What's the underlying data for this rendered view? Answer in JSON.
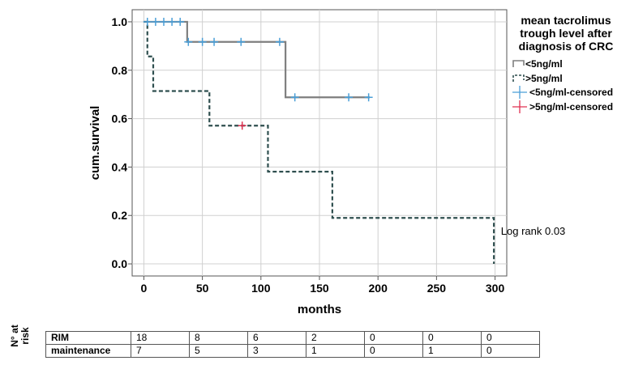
{
  "chart_data": {
    "type": "line",
    "subtype": "kaplan-meier",
    "xlabel": "months",
    "ylabel": "cum.survival",
    "xlim": [
      -10,
      310
    ],
    "ylim": [
      -0.05,
      1.05
    ],
    "xticks": [
      0,
      50,
      100,
      150,
      200,
      250,
      300
    ],
    "yticks": [
      0.0,
      0.2,
      0.4,
      0.6,
      0.8,
      1.0
    ],
    "ytick_labels": [
      "0.0",
      "0.2",
      "0.4",
      "0.6",
      "0.8",
      "1.0"
    ],
    "grid": true,
    "legend_title": "mean tacrolimus trough level after diagnosis of CRC",
    "legend_position": "right",
    "series": [
      {
        "name": "<5ng/ml",
        "color": "#7f7f7f",
        "style": "solid",
        "steps": [
          [
            0,
            1.0
          ],
          [
            37,
            0.917
          ],
          [
            121,
            0.688
          ],
          [
            193,
            0.688
          ]
        ]
      },
      {
        "name": ">5ng/ml",
        "color": "#2f4f4f",
        "style": "dashed",
        "steps": [
          [
            0,
            1.0
          ],
          [
            3,
            0.857
          ],
          [
            8,
            0.714
          ],
          [
            56,
            0.571
          ],
          [
            106,
            0.381
          ],
          [
            161,
            0.19
          ],
          [
            299,
            0.0
          ]
        ]
      }
    ],
    "censored": [
      {
        "name": "<5ng/ml-censored",
        "color": "#4a9fd8",
        "points": [
          [
            3,
            1.0
          ],
          [
            10,
            1.0
          ],
          [
            17,
            1.0
          ],
          [
            24,
            1.0
          ],
          [
            31,
            1.0
          ],
          [
            38,
            0.917
          ],
          [
            50,
            0.917
          ],
          [
            60,
            0.917
          ],
          [
            83,
            0.917
          ],
          [
            116,
            0.917
          ],
          [
            129,
            0.688
          ],
          [
            175,
            0.688
          ],
          [
            192,
            0.688
          ]
        ]
      },
      {
        "name": ">5ng/ml-censored",
        "color": "#e03050",
        "points": [
          [
            84,
            0.571
          ]
        ]
      }
    ],
    "annotations": [
      {
        "text": "Log rank 0.03",
        "x": 305,
        "y": 0.12
      }
    ]
  },
  "risk_table": {
    "axis_label": "N° at\nrisk",
    "rows": [
      {
        "label": "RIM",
        "values": [
          "18",
          "8",
          "6",
          "2",
          "0",
          "0",
          "0"
        ]
      },
      {
        "label": "maintenance",
        "values": [
          "7",
          "5",
          "3",
          "1",
          "0",
          "1",
          "0"
        ]
      }
    ]
  }
}
